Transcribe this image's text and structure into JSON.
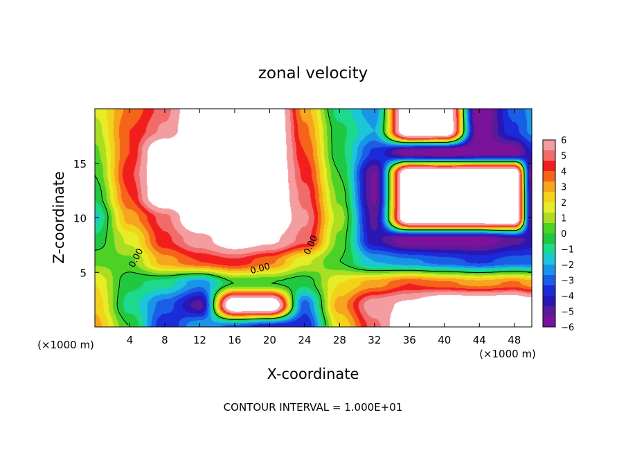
{
  "chart_data": {
    "type": "heatmap",
    "title": "zonal velocity",
    "xlabel": "X-coordinate",
    "ylabel": "Z-coordinate",
    "x_unit_label": "(×1000 m)",
    "x_unit_label_right": "(×1000 m)",
    "footer": "CONTOUR INTERVAL = 1.000E+01",
    "xlim": [
      0,
      50
    ],
    "ylim": [
      0,
      20
    ],
    "x_ticks": [
      4,
      8,
      12,
      16,
      20,
      24,
      28,
      32,
      36,
      40,
      44,
      48
    ],
    "y_ticks": [
      5,
      10,
      15
    ],
    "colorbar": {
      "min": -6,
      "max": 6,
      "ticks": [
        6,
        5,
        4,
        3,
        2,
        1,
        0,
        -1,
        -2,
        -3,
        -4,
        -5,
        -6
      ],
      "colors": [
        "#F49DA0",
        "#F26B6B",
        "#F21E1E",
        "#F5641A",
        "#F7A51F",
        "#F3D21A",
        "#E6EC25",
        "#A9DE22",
        "#4CD227",
        "#20C840",
        "#1CD98D",
        "#1DC6D6",
        "#1995E8",
        "#1A5EE6",
        "#1C2BD8",
        "#2A16B2",
        "#5A1A9A",
        "#7A129C"
      ],
      "above_max_color": "#FFFFFF"
    },
    "field": {
      "x": [
        0,
        4,
        8,
        12,
        16,
        20,
        24,
        28,
        32,
        36,
        40,
        44,
        48,
        50
      ],
      "z": [
        0,
        2,
        4,
        6,
        8,
        10,
        12,
        14,
        16,
        18,
        20
      ],
      "values": [
        [
          3.0,
          0.0,
          -4.0,
          -2.0,
          -3.0,
          -4.0,
          -4.0,
          2.0,
          5.0,
          9.0,
          9.0,
          9.0,
          9.0,
          8.0
        ],
        [
          2.5,
          -1.0,
          -3.0,
          -5.0,
          9.0,
          9.0,
          -3.0,
          3.0,
          6.0,
          7.0,
          9.0,
          9.0,
          9.0,
          8.0
        ],
        [
          2.0,
          -0.5,
          -1.0,
          -2.5,
          0.0,
          0.0,
          -0.5,
          2.0,
          3.0,
          4.0,
          3.5,
          3.0,
          3.5,
          3.0
        ],
        [
          0.5,
          0.5,
          3.0,
          4.0,
          4.5,
          3.5,
          1.5,
          0.0,
          -2.0,
          -2.5,
          -3.0,
          -3.5,
          -3.0,
          -3.0
        ],
        [
          -0.5,
          1.5,
          4.5,
          6.0,
          8.0,
          7.0,
          5.0,
          0.5,
          -4.5,
          -6.0,
          -6.0,
          -6.0,
          -5.0,
          -4.5
        ],
        [
          -1.5,
          3.0,
          5.0,
          9.0,
          9.0,
          9.0,
          5.5,
          1.0,
          -5.0,
          9.0,
          9.0,
          9.0,
          9.0,
          -5.0
        ],
        [
          -0.5,
          4.0,
          9.0,
          9.0,
          9.0,
          9.0,
          5.0,
          0.5,
          -5.5,
          9.0,
          9.0,
          9.0,
          9.0,
          -5.0
        ],
        [
          0.0,
          4.5,
          9.0,
          9.0,
          9.0,
          9.0,
          4.5,
          0.0,
          -5.5,
          9.0,
          9.0,
          9.0,
          9.0,
          -5.5
        ],
        [
          0.5,
          4.0,
          9.0,
          9.0,
          9.0,
          9.0,
          4.0,
          -0.5,
          -3.5,
          -6.0,
          -6.5,
          -6.0,
          -6.0,
          -4.0
        ],
        [
          1.0,
          4.0,
          5.5,
          9.0,
          9.0,
          9.0,
          3.5,
          -0.5,
          -2.0,
          9.0,
          9.0,
          -6.0,
          -3.5,
          -2.5
        ],
        [
          1.5,
          3.5,
          5.0,
          9.0,
          9.0,
          9.0,
          3.0,
          -1.0,
          -2.5,
          9.0,
          9.0,
          -6.5,
          -3.0,
          -2.5
        ]
      ]
    },
    "contours": {
      "levels": [
        -10,
        0,
        10
      ],
      "zero_labels": [
        "0.00",
        "0.00",
        "0.00"
      ]
    }
  }
}
